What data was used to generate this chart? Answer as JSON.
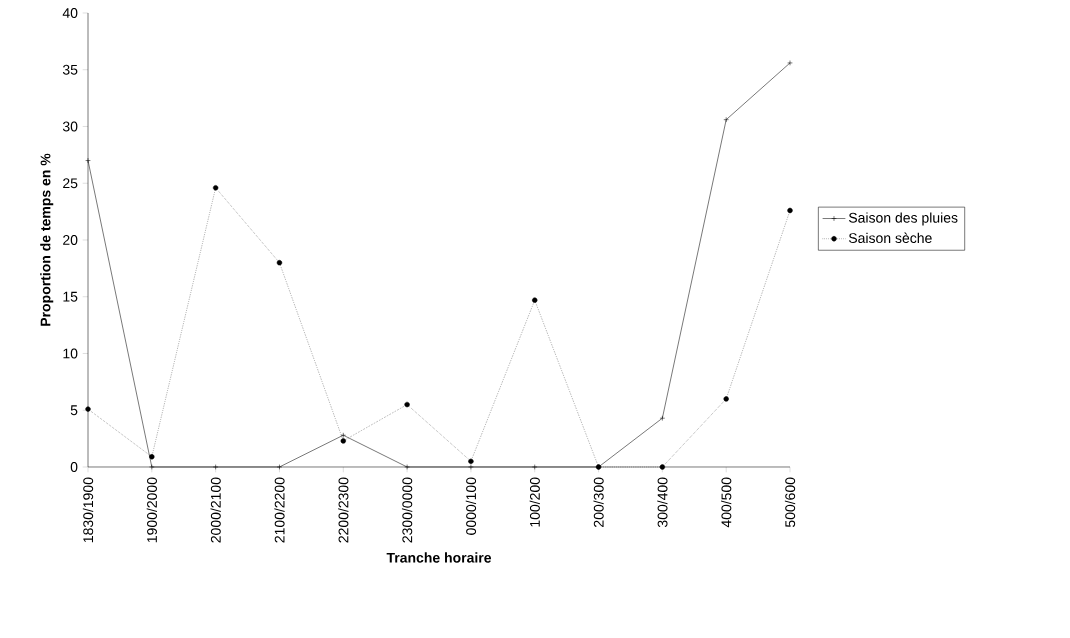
{
  "chart_data": {
    "type": "line",
    "xlabel": "Tranche horaire",
    "ylabel": "Proportion de temps en %",
    "categories": [
      "1830/1900",
      "1900/2000",
      "2000/2100",
      "2100/2200",
      "2200/2300",
      "2300/0000",
      "0000/100",
      "100/200",
      "200/300",
      "300/400",
      "400/500",
      "500/600"
    ],
    "series": [
      {
        "name": "Saison des pluies",
        "color": "#000000",
        "marker": "cross",
        "line_style": "solid",
        "values": [
          27.0,
          0,
          0,
          0,
          2.8,
          0,
          0,
          0,
          0,
          4.3,
          30.6,
          35.6
        ]
      },
      {
        "name": "Saison sèche",
        "color": "#000000",
        "marker": "circle",
        "line_style": "dotted",
        "values": [
          5.1,
          0.9,
          24.6,
          18.0,
          2.3,
          5.5,
          0.5,
          14.7,
          0,
          0,
          6.0,
          22.6
        ]
      }
    ],
    "ylim": [
      0,
      40
    ],
    "yticks": [
      0,
      5,
      10,
      15,
      20,
      25,
      30,
      35,
      40
    ],
    "grid": false,
    "legend": "right"
  }
}
